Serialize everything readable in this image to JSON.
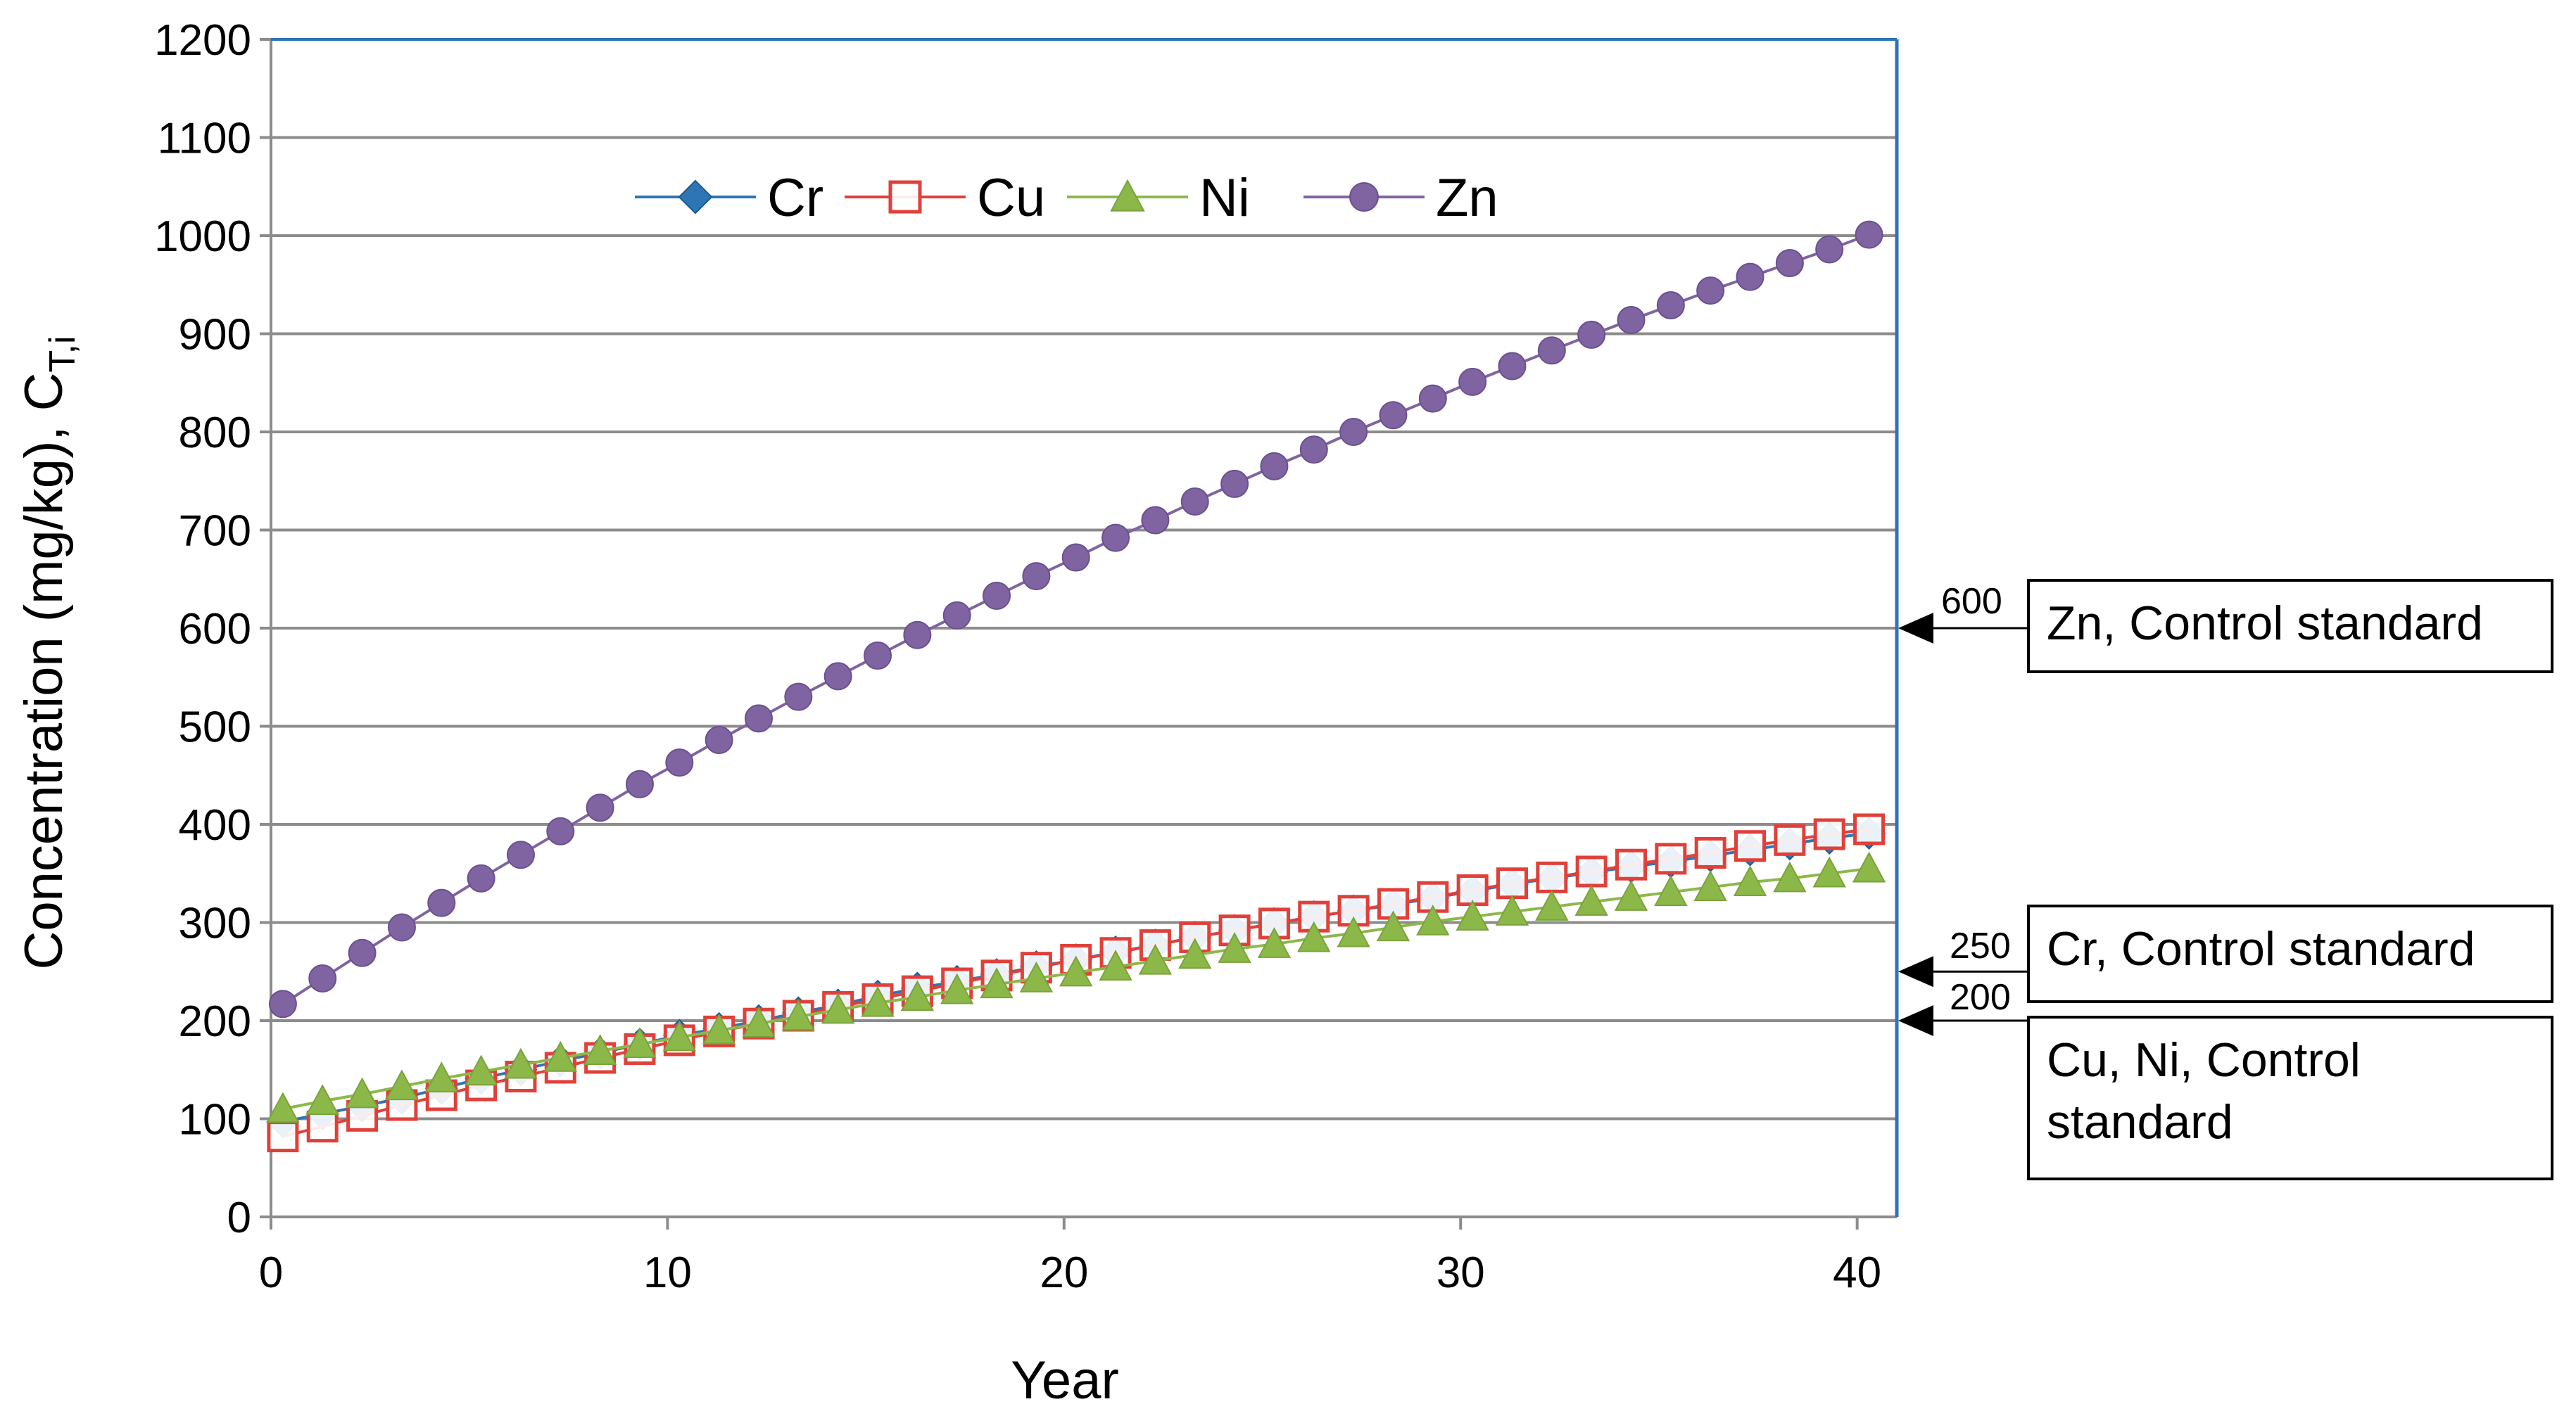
{
  "chart_data": {
    "type": "line",
    "title": "",
    "xlabel": "Year",
    "ylabel": "Concentration (mg/kg), C",
    "ylabel_subscript": "T,i",
    "xlim": [
      0,
      41
    ],
    "ylim": [
      0,
      1200
    ],
    "xticks": [
      0,
      10,
      20,
      30,
      40
    ],
    "yticks": [
      0,
      100,
      200,
      300,
      400,
      500,
      600,
      700,
      800,
      900,
      1000,
      1100,
      1200
    ],
    "grid": "horizontal",
    "legend_position": "top-left",
    "x": [
      0.3,
      1.3,
      2.3,
      3.3,
      4.3,
      5.3,
      6.3,
      7.3,
      8.3,
      9.3,
      10.3,
      11.3,
      12.3,
      13.3,
      14.3,
      15.3,
      16.3,
      17.3,
      18.3,
      19.3,
      20.3,
      21.3,
      22.3,
      23.3,
      24.3,
      25.3,
      26.3,
      27.3,
      28.3,
      29.3,
      30.3,
      31.3,
      32.3,
      33.3,
      34.3,
      35.3,
      36.3,
      37.3,
      38.3,
      39.3,
      40.3
    ],
    "series": [
      {
        "name": "Cr",
        "color": "#2E75B6",
        "marker": "diamond",
        "values": [
          97,
          105,
          113,
          121,
          131,
          141,
          150,
          159,
          167,
          176,
          185,
          192,
          200,
          208,
          216,
          225,
          233,
          240,
          247,
          255,
          262,
          270,
          277,
          285,
          292,
          299,
          306,
          312,
          318,
          325,
          332,
          339,
          345,
          351,
          357,
          362,
          368,
          374,
          380,
          386,
          391
        ]
      },
      {
        "name": "Cu",
        "color": "#E0403A",
        "marker": "square",
        "values": [
          82,
          92,
          103,
          114,
          124,
          134,
          143,
          152,
          162,
          171,
          180,
          189,
          197,
          205,
          214,
          222,
          230,
          238,
          246,
          254,
          262,
          269,
          277,
          285,
          292,
          299,
          306,
          312,
          319,
          326,
          333,
          340,
          346,
          352,
          359,
          365,
          371,
          378,
          384,
          390,
          395
        ]
      },
      {
        "name": "Ni",
        "color": "#8CB84A",
        "marker": "triangle",
        "values": [
          110,
          118,
          125,
          133,
          141,
          148,
          155,
          162,
          169,
          176,
          183,
          190,
          197,
          204,
          211,
          218,
          224,
          231,
          237,
          243,
          249,
          255,
          261,
          267,
          273,
          278,
          284,
          289,
          295,
          301,
          306,
          311,
          316,
          321,
          326,
          331,
          336,
          341,
          345,
          350,
          355
        ]
      },
      {
        "name": "Zn",
        "color": "#8064A2",
        "marker": "circle",
        "values": [
          217,
          243,
          269,
          295,
          320,
          345,
          369,
          393,
          417,
          441,
          463,
          486,
          508,
          530,
          551,
          572,
          593,
          613,
          633,
          653,
          672,
          692,
          710,
          729,
          747,
          765,
          782,
          800,
          817,
          834,
          851,
          867,
          883,
          899,
          914,
          929,
          944,
          958,
          972,
          986,
          1001
        ]
      }
    ],
    "annotations": [
      {
        "value": "600",
        "label_lines": [
          "Zn, Control standard"
        ]
      },
      {
        "value": "250",
        "label_lines": [
          "Cr, Control standard"
        ]
      },
      {
        "value": "200",
        "label_lines": [
          "Cu, Ni, Control",
          "standard"
        ]
      }
    ]
  }
}
